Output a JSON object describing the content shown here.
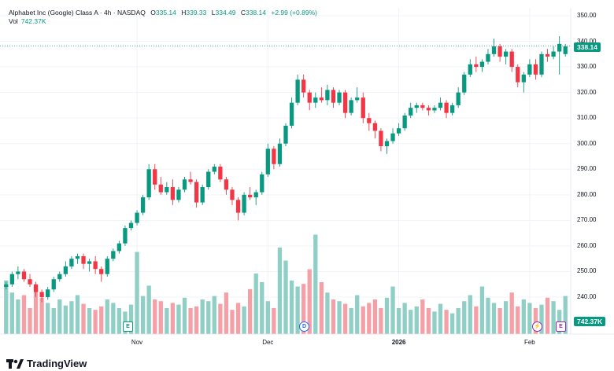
{
  "header": {
    "symbol": "Alphabet Inc (Google) Class A · 4h · NASDAQ",
    "o_label": "O",
    "o_value": "335.14",
    "h_label": "H",
    "h_value": "339.33",
    "l_label": "L",
    "l_value": "334.49",
    "c_label": "C",
    "c_value": "338.14",
    "change": "+2.99 (+0.89%)"
  },
  "volume": {
    "label": "Vol",
    "value": "742.37K",
    "tag": "742.37K"
  },
  "last_price": "338.14",
  "brand": "TradingView",
  "markers": {
    "earnings1": "E",
    "dividend": "D",
    "earnings2": "E"
  },
  "colors": {
    "up": "#089981",
    "down": "#f23645",
    "vol_up": "#8fcfc6",
    "vol_down": "#f5a0a7",
    "grid": "#f0f3fa"
  },
  "chart_data": {
    "type": "candlestick",
    "title": "Alphabet Inc (Google) Class A · 4h · NASDAQ",
    "y_axis": {
      "range": [
        230,
        355
      ],
      "ticks": [
        "240.00",
        "250.00",
        "260.00",
        "270.00",
        "280.00",
        "290.00",
        "300.00",
        "310.00",
        "320.00",
        "330.00",
        "340.00",
        "350.00"
      ]
    },
    "x_axis": {
      "ticks": [
        "Nov",
        "Dec",
        "2026",
        "Feb"
      ],
      "bold": [
        "2026"
      ]
    },
    "candles": [
      [
        244,
        246,
        243,
        245
      ],
      [
        245,
        250,
        244,
        249
      ],
      [
        249,
        252,
        247,
        250
      ],
      [
        250,
        251,
        246,
        247
      ],
      [
        247,
        249,
        244,
        245
      ],
      [
        245,
        246,
        240,
        242
      ],
      [
        242,
        243,
        238,
        240
      ],
      [
        240,
        244,
        239,
        243
      ],
      [
        243,
        248,
        242,
        247
      ],
      [
        247,
        250,
        246,
        249
      ],
      [
        249,
        254,
        248,
        252
      ],
      [
        252,
        256,
        251,
        255
      ],
      [
        255,
        257,
        253,
        256
      ],
      [
        256,
        257,
        251,
        253
      ],
      [
        253,
        255,
        250,
        254
      ],
      [
        254,
        256,
        249,
        251
      ],
      [
        251,
        252,
        246,
        249
      ],
      [
        249,
        256,
        248,
        255
      ],
      [
        255,
        259,
        254,
        258
      ],
      [
        258,
        262,
        257,
        261
      ],
      [
        261,
        268,
        260,
        267
      ],
      [
        267,
        270,
        266,
        269
      ],
      [
        269,
        274,
        268,
        273
      ],
      [
        273,
        280,
        272,
        279
      ],
      [
        279,
        292,
        278,
        290
      ],
      [
        290,
        292,
        282,
        284
      ],
      [
        284,
        287,
        280,
        281
      ],
      [
        281,
        285,
        280,
        283
      ],
      [
        283,
        286,
        276,
        278
      ],
      [
        278,
        283,
        277,
        282
      ],
      [
        282,
        287,
        281,
        286
      ],
      [
        286,
        289,
        284,
        285
      ],
      [
        285,
        286,
        275,
        277
      ],
      [
        277,
        284,
        276,
        283
      ],
      [
        283,
        290,
        282,
        289
      ],
      [
        289,
        292,
        288,
        291
      ],
      [
        291,
        292,
        285,
        286
      ],
      [
        286,
        287,
        280,
        282
      ],
      [
        282,
        283,
        276,
        278
      ],
      [
        278,
        279,
        270,
        273
      ],
      [
        273,
        281,
        272,
        280
      ],
      [
        280,
        283,
        278,
        279
      ],
      [
        279,
        282,
        276,
        281
      ],
      [
        281,
        289,
        280,
        288
      ],
      [
        288,
        300,
        287,
        298
      ],
      [
        298,
        299,
        290,
        292
      ],
      [
        292,
        302,
        291,
        300
      ],
      [
        300,
        308,
        299,
        307
      ],
      [
        307,
        318,
        306,
        316
      ],
      [
        316,
        327,
        315,
        325
      ],
      [
        325,
        327,
        318,
        320
      ],
      [
        320,
        321,
        313,
        316
      ],
      [
        316,
        320,
        314,
        318
      ],
      [
        318,
        322,
        316,
        317
      ],
      [
        317,
        323,
        315,
        321
      ],
      [
        321,
        322,
        314,
        316
      ],
      [
        316,
        321,
        315,
        320
      ],
      [
        320,
        321,
        310,
        312
      ],
      [
        312,
        318,
        311,
        317
      ],
      [
        317,
        322,
        316,
        318
      ],
      [
        318,
        320,
        308,
        310
      ],
      [
        310,
        312,
        305,
        308
      ],
      [
        308,
        309,
        302,
        305
      ],
      [
        305,
        306,
        297,
        299
      ],
      [
        299,
        302,
        296,
        301
      ],
      [
        301,
        306,
        300,
        304
      ],
      [
        304,
        308,
        303,
        306
      ],
      [
        306,
        312,
        305,
        311
      ],
      [
        311,
        316,
        310,
        314
      ],
      [
        314,
        316,
        312,
        315
      ],
      [
        315,
        316,
        313,
        314
      ],
      [
        314,
        315,
        311,
        313
      ],
      [
        313,
        315,
        312,
        314
      ],
      [
        314,
        318,
        313,
        316
      ],
      [
        316,
        317,
        310,
        312
      ],
      [
        312,
        316,
        311,
        315
      ],
      [
        315,
        322,
        314,
        320
      ],
      [
        320,
        328,
        319,
        327
      ],
      [
        327,
        333,
        326,
        331
      ],
      [
        331,
        334,
        328,
        330
      ],
      [
        330,
        333,
        328,
        332
      ],
      [
        332,
        337,
        331,
        335
      ],
      [
        335,
        341,
        334,
        338
      ],
      [
        338,
        339,
        332,
        334
      ],
      [
        334,
        337,
        331,
        336
      ],
      [
        336,
        337,
        328,
        330
      ],
      [
        330,
        331,
        322,
        324
      ],
      [
        324,
        328,
        320,
        327
      ],
      [
        327,
        333,
        326,
        331
      ],
      [
        331,
        333,
        325,
        327
      ],
      [
        327,
        336,
        326,
        335
      ],
      [
        335,
        337,
        332,
        334
      ],
      [
        334,
        338,
        333,
        336
      ],
      [
        336,
        342,
        327,
        339
      ],
      [
        335,
        339,
        334,
        338
      ]
    ],
    "volumes": [
      0.62,
      0.48,
      0.4,
      0.45,
      0.3,
      0.55,
      0.42,
      0.36,
      0.3,
      0.4,
      0.33,
      0.38,
      0.45,
      0.35,
      0.3,
      0.28,
      0.32,
      0.4,
      0.36,
      0.3,
      0.26,
      0.34,
      0.95,
      0.44,
      0.56,
      0.4,
      0.38,
      0.3,
      0.36,
      0.34,
      0.42,
      0.3,
      0.32,
      0.4,
      0.38,
      0.44,
      0.35,
      0.48,
      0.28,
      0.36,
      0.32,
      0.52,
      0.7,
      0.6,
      0.38,
      0.3,
      1.0,
      0.85,
      0.62,
      0.55,
      0.58,
      0.75,
      1.15,
      0.6,
      0.48,
      0.4,
      0.38,
      0.35,
      0.3,
      0.45,
      0.32,
      0.36,
      0.4,
      0.3,
      0.42,
      0.55,
      0.3,
      0.36,
      0.28,
      0.32,
      0.4,
      0.3,
      0.26,
      0.35,
      0.28,
      0.24,
      0.3,
      0.38,
      0.45,
      0.32,
      0.55,
      0.42,
      0.36,
      0.3,
      0.38,
      0.48,
      0.32,
      0.4,
      0.36,
      0.3,
      0.34,
      0.42,
      0.38,
      0.28,
      0.44
    ]
  }
}
